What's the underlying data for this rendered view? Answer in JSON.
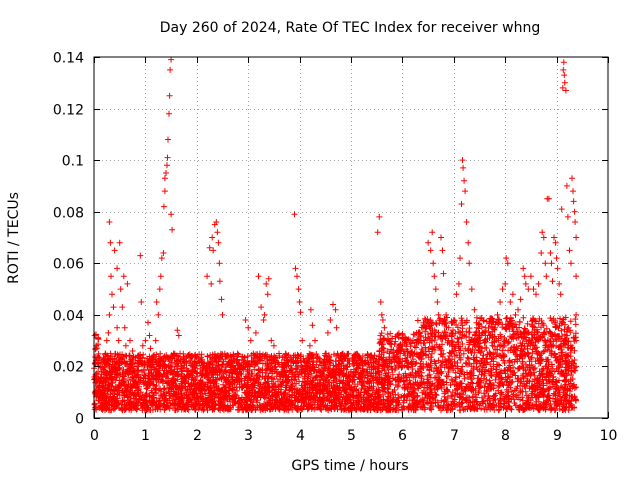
{
  "chart_data": {
    "type": "scatter",
    "title": "Day 260 of 2024, Rate Of TEC Index for receiver whng",
    "xlabel": "GPS time / hours",
    "ylabel": "ROTI / TECUs",
    "xlim": [
      0,
      10
    ],
    "ylim": [
      0,
      0.14
    ],
    "xticks": [
      "0",
      "1",
      "2",
      "3",
      "4",
      "5",
      "6",
      "7",
      "8",
      "9",
      "10"
    ],
    "yticks": [
      "0",
      "0.02",
      "0.04",
      "0.06",
      "0.08",
      "0.1",
      "0.12",
      "0.14"
    ],
    "grid": true,
    "marker": "+",
    "color": "#ff0000",
    "series": [
      {
        "name": "ROTI",
        "points": [
          [
            0.05,
            0.015
          ],
          [
            0.1,
            0.012
          ],
          [
            0.15,
            0.018
          ],
          [
            0.2,
            0.021
          ],
          [
            0.22,
            0.025
          ],
          [
            0.25,
            0.03
          ],
          [
            0.28,
            0.033
          ],
          [
            0.3,
            0.04
          ],
          [
            0.3,
            0.076
          ],
          [
            0.32,
            0.068
          ],
          [
            0.33,
            0.055
          ],
          [
            0.35,
            0.048
          ],
          [
            0.38,
            0.043
          ],
          [
            0.4,
            0.065
          ],
          [
            0.45,
            0.035
          ],
          [
            0.45,
            0.058
          ],
          [
            0.48,
            0.03
          ],
          [
            0.5,
            0.068
          ],
          [
            0.52,
            0.05
          ],
          [
            0.55,
            0.043
          ],
          [
            0.58,
            0.055
          ],
          [
            0.6,
            0.035
          ],
          [
            0.62,
            0.028
          ],
          [
            0.65,
            0.052
          ],
          [
            0.7,
            0.03
          ],
          [
            0.72,
            0.022
          ],
          [
            0.75,
            0.026
          ],
          [
            0.8,
            0.018
          ],
          [
            0.85,
            0.024
          ],
          [
            0.9,
            0.063
          ],
          [
            0.92,
            0.045
          ],
          [
            0.95,
            0.028
          ],
          [
            1.0,
            0.03
          ],
          [
            1.05,
            0.037
          ],
          [
            1.08,
            0.032
          ],
          [
            1.1,
            0.027
          ],
          [
            1.15,
            0.024
          ],
          [
            1.2,
            0.03
          ],
          [
            1.22,
            0.045
          ],
          [
            1.25,
            0.04
          ],
          [
            1.28,
            0.05
          ],
          [
            1.3,
            0.055
          ],
          [
            1.32,
            0.062
          ],
          [
            1.35,
            0.064
          ],
          [
            1.36,
            0.082
          ],
          [
            1.38,
            0.088
          ],
          [
            1.38,
            0.093
          ],
          [
            1.4,
            0.095
          ],
          [
            1.42,
            0.098
          ],
          [
            1.43,
            0.101
          ],
          [
            1.44,
            0.108
          ],
          [
            1.46,
            0.118
          ],
          [
            1.47,
            0.125
          ],
          [
            1.48,
            0.135
          ],
          [
            1.5,
            0.139
          ],
          [
            1.5,
            0.079
          ],
          [
            1.52,
            0.073
          ],
          [
            1.55,
            0.025
          ],
          [
            1.6,
            0.02
          ],
          [
            1.62,
            0.034
          ],
          [
            1.65,
            0.032
          ],
          [
            1.7,
            0.018
          ],
          [
            1.8,
            0.016
          ],
          [
            1.9,
            0.015
          ],
          [
            2.0,
            0.016
          ],
          [
            2.1,
            0.014
          ],
          [
            2.2,
            0.055
          ],
          [
            2.25,
            0.066
          ],
          [
            2.28,
            0.052
          ],
          [
            2.3,
            0.07
          ],
          [
            2.32,
            0.065
          ],
          [
            2.35,
            0.075
          ],
          [
            2.38,
            0.076
          ],
          [
            2.4,
            0.072
          ],
          [
            2.42,
            0.068
          ],
          [
            2.44,
            0.06
          ],
          [
            2.45,
            0.053
          ],
          [
            2.48,
            0.046
          ],
          [
            2.5,
            0.04
          ],
          [
            2.55,
            0.018
          ],
          [
            2.6,
            0.014
          ],
          [
            2.7,
            0.015
          ],
          [
            2.8,
            0.017
          ],
          [
            2.9,
            0.02
          ],
          [
            2.95,
            0.038
          ],
          [
            3.0,
            0.035
          ],
          [
            3.05,
            0.03
          ],
          [
            3.1,
            0.025
          ],
          [
            3.15,
            0.033
          ],
          [
            3.2,
            0.055
          ],
          [
            3.25,
            0.043
          ],
          [
            3.3,
            0.038
          ],
          [
            3.32,
            0.04
          ],
          [
            3.35,
            0.052
          ],
          [
            3.38,
            0.048
          ],
          [
            3.4,
            0.054
          ],
          [
            3.45,
            0.03
          ],
          [
            3.5,
            0.028
          ],
          [
            3.6,
            0.025
          ],
          [
            3.7,
            0.024
          ],
          [
            3.75,
            0.02
          ],
          [
            3.8,
            0.018
          ],
          [
            3.85,
            0.017
          ],
          [
            3.9,
            0.079
          ],
          [
            3.92,
            0.058
          ],
          [
            3.95,
            0.055
          ],
          [
            3.98,
            0.05
          ],
          [
            4.0,
            0.045
          ],
          [
            4.02,
            0.041
          ],
          [
            4.05,
            0.03
          ],
          [
            4.1,
            0.022
          ],
          [
            4.15,
            0.02
          ],
          [
            4.2,
            0.028
          ],
          [
            4.22,
            0.042
          ],
          [
            4.25,
            0.036
          ],
          [
            4.3,
            0.03
          ],
          [
            4.4,
            0.022
          ],
          [
            4.5,
            0.025
          ],
          [
            4.55,
            0.033
          ],
          [
            4.6,
            0.038
          ],
          [
            4.65,
            0.044
          ],
          [
            4.7,
            0.042
          ],
          [
            4.72,
            0.035
          ],
          [
            4.8,
            0.024
          ],
          [
            4.9,
            0.02
          ],
          [
            5.0,
            0.018
          ],
          [
            5.1,
            0.017
          ],
          [
            5.2,
            0.016
          ],
          [
            5.3,
            0.018
          ],
          [
            5.4,
            0.02
          ],
          [
            5.5,
            0.022
          ],
          [
            5.52,
            0.072
          ],
          [
            5.55,
            0.078
          ],
          [
            5.58,
            0.045
          ],
          [
            5.6,
            0.04
          ],
          [
            5.62,
            0.038
          ],
          [
            5.65,
            0.035
          ],
          [
            5.7,
            0.03
          ],
          [
            5.75,
            0.025
          ],
          [
            5.8,
            0.022
          ],
          [
            5.9,
            0.024
          ],
          [
            6.0,
            0.028
          ],
          [
            6.05,
            0.03
          ],
          [
            6.1,
            0.026
          ],
          [
            6.2,
            0.024
          ],
          [
            6.3,
            0.03
          ],
          [
            6.4,
            0.035
          ],
          [
            6.45,
            0.038
          ],
          [
            6.5,
            0.068
          ],
          [
            6.55,
            0.065
          ],
          [
            6.58,
            0.072
          ],
          [
            6.6,
            0.06
          ],
          [
            6.62,
            0.055
          ],
          [
            6.65,
            0.05
          ],
          [
            6.68,
            0.045
          ],
          [
            6.7,
            0.04
          ],
          [
            6.72,
            0.038
          ],
          [
            6.75,
            0.07
          ],
          [
            6.78,
            0.065
          ],
          [
            6.8,
            0.056
          ],
          [
            6.85,
            0.04
          ],
          [
            6.9,
            0.035
          ],
          [
            6.95,
            0.033
          ],
          [
            7.0,
            0.038
          ],
          [
            7.05,
            0.048
          ],
          [
            7.1,
            0.052
          ],
          [
            7.12,
            0.062
          ],
          [
            7.15,
            0.083
          ],
          [
            7.17,
            0.1
          ],
          [
            7.18,
            0.097
          ],
          [
            7.2,
            0.092
          ],
          [
            7.22,
            0.088
          ],
          [
            7.25,
            0.076
          ],
          [
            7.28,
            0.068
          ],
          [
            7.3,
            0.06
          ],
          [
            7.35,
            0.05
          ],
          [
            7.4,
            0.042
          ],
          [
            7.45,
            0.035
          ],
          [
            7.5,
            0.033
          ],
          [
            7.6,
            0.03
          ],
          [
            7.7,
            0.032
          ],
          [
            7.8,
            0.035
          ],
          [
            7.85,
            0.04
          ],
          [
            7.9,
            0.045
          ],
          [
            7.95,
            0.05
          ],
          [
            8.0,
            0.052
          ],
          [
            8.02,
            0.062
          ],
          [
            8.05,
            0.06
          ],
          [
            8.1,
            0.045
          ],
          [
            8.15,
            0.048
          ],
          [
            8.2,
            0.04
          ],
          [
            8.25,
            0.042
          ],
          [
            8.3,
            0.046
          ],
          [
            8.35,
            0.058
          ],
          [
            8.38,
            0.055
          ],
          [
            8.4,
            0.052
          ],
          [
            8.45,
            0.05
          ],
          [
            8.5,
            0.055
          ],
          [
            8.55,
            0.05
          ],
          [
            8.6,
            0.048
          ],
          [
            8.65,
            0.052
          ],
          [
            8.7,
            0.064
          ],
          [
            8.72,
            0.072
          ],
          [
            8.75,
            0.07
          ],
          [
            8.78,
            0.06
          ],
          [
            8.8,
            0.055
          ],
          [
            8.82,
            0.085
          ],
          [
            8.85,
            0.085
          ],
          [
            8.88,
            0.064
          ],
          [
            8.9,
            0.06
          ],
          [
            8.92,
            0.053
          ],
          [
            8.95,
            0.07
          ],
          [
            8.98,
            0.068
          ],
          [
            9.0,
            0.062
          ],
          [
            9.02,
            0.058
          ],
          [
            9.05,
            0.052
          ],
          [
            9.08,
            0.048
          ],
          [
            9.1,
            0.081
          ],
          [
            9.12,
            0.128
          ],
          [
            9.13,
            0.135
          ],
          [
            9.14,
            0.138
          ],
          [
            9.15,
            0.133
          ],
          [
            9.16,
            0.13
          ],
          [
            9.18,
            0.127
          ],
          [
            9.2,
            0.09
          ],
          [
            9.22,
            0.078
          ],
          [
            9.25,
            0.065
          ],
          [
            9.28,
            0.06
          ],
          [
            9.3,
            0.093
          ],
          [
            9.32,
            0.088
          ],
          [
            9.33,
            0.084
          ],
          [
            9.35,
            0.08
          ],
          [
            9.36,
            0.076
          ],
          [
            9.38,
            0.07
          ],
          [
            9.38,
            0.055
          ],
          [
            9.38,
            0.04
          ],
          [
            9.38,
            0.03
          ],
          [
            9.38,
            0.02
          ],
          [
            9.38,
            0.012
          ]
        ]
      }
    ]
  }
}
